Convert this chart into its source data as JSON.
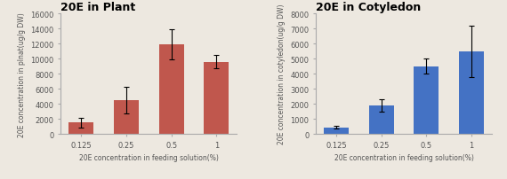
{
  "left": {
    "title": "20E in Plant",
    "categories": [
      "0.125",
      "0.25",
      "0.5",
      "1"
    ],
    "values": [
      1500,
      4500,
      11900,
      9600
    ],
    "errors": [
      700,
      1800,
      2000,
      900
    ],
    "bar_color": "#C0574D",
    "ylabel": "20E concentration in plnat(ug/g DW)",
    "xlabel": "20E concentration in feeding solution(%)",
    "ylim": [
      0,
      16000
    ],
    "yticks": [
      0,
      2000,
      4000,
      6000,
      8000,
      10000,
      12000,
      14000,
      16000
    ]
  },
  "right": {
    "title": "20E in Cotyledon",
    "categories": [
      "0.125",
      "0.25",
      "0.5",
      "1"
    ],
    "values": [
      450,
      1900,
      4500,
      5500
    ],
    "errors": [
      80,
      400,
      500,
      1700
    ],
    "bar_color": "#4472C4",
    "ylabel": "20E concentration in cotyledon(ug/g DW)",
    "xlabel": "20E concentration in feeding solution(%)",
    "ylim": [
      0,
      8000
    ],
    "yticks": [
      0,
      1000,
      2000,
      3000,
      4000,
      5000,
      6000,
      7000,
      8000
    ]
  },
  "background_color": "#ede8e0",
  "title_fontsize": 9,
  "label_fontsize": 5.5,
  "tick_fontsize": 6
}
